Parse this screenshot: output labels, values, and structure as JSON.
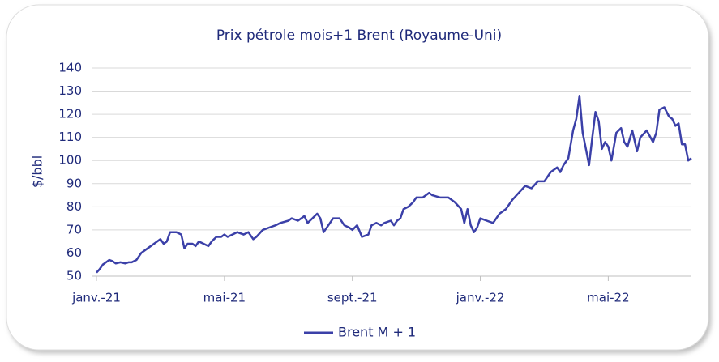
{
  "chart_data": {
    "type": "line",
    "title": "Prix pétrole mois+1 Brent (Royaume-Uni)",
    "y_label": "$/bbl",
    "x": [
      0,
      0.1,
      0.2,
      0.3,
      0.4,
      0.5,
      0.6,
      0.75,
      0.9,
      1.0,
      1.1,
      1.25,
      1.4,
      1.6,
      1.8,
      2.0,
      2.1,
      2.2,
      2.3,
      2.5,
      2.65,
      2.75,
      2.85,
      3.0,
      3.1,
      3.2,
      3.35,
      3.5,
      3.6,
      3.75,
      3.9,
      4.0,
      4.1,
      4.25,
      4.4,
      4.6,
      4.75,
      4.9,
      5.0,
      5.2,
      5.4,
      5.6,
      5.75,
      6.0,
      6.1,
      6.3,
      6.5,
      6.6,
      6.75,
      6.9,
      7.0,
      7.1,
      7.25,
      7.4,
      7.6,
      7.75,
      7.9,
      8.0,
      8.15,
      8.3,
      8.5,
      8.6,
      8.75,
      8.9,
      9.0,
      9.2,
      9.3,
      9.4,
      9.5,
      9.6,
      9.75,
      9.9,
      10.0,
      10.2,
      10.4,
      10.5,
      10.75,
      11.0,
      11.2,
      11.4,
      11.5,
      11.6,
      11.7,
      11.8,
      11.9,
      12.0,
      12.2,
      12.4,
      12.6,
      12.8,
      13.0,
      13.2,
      13.4,
      13.6,
      13.8,
      14.0,
      14.2,
      14.4,
      14.5,
      14.6,
      14.75,
      14.9,
      15.0,
      15.1,
      15.2,
      15.3,
      15.4,
      15.5,
      15.6,
      15.7,
      15.8,
      15.9,
      16.0,
      16.1,
      16.25,
      16.4,
      16.5,
      16.6,
      16.75,
      16.9,
      17.0,
      17.2,
      17.4,
      17.5,
      17.6,
      17.75,
      17.9,
      18.0,
      18.1,
      18.2,
      18.3,
      18.4,
      18.5,
      18.6
    ],
    "series": [
      {
        "name": "Brent M + 1",
        "color": "#3b40a8",
        "values": [
          51.5,
          53,
          55,
          56,
          57,
          56.5,
          55.5,
          56,
          55.5,
          56,
          56,
          57,
          60,
          62,
          64,
          66,
          64,
          65,
          69,
          69,
          68,
          62,
          64,
          64,
          63,
          65,
          64,
          63,
          65,
          67,
          67,
          68,
          67,
          68,
          69,
          68,
          69,
          66,
          67,
          70,
          71,
          72,
          73,
          74,
          75,
          74,
          76,
          73,
          75,
          77,
          75,
          69,
          72,
          75,
          75,
          72,
          71,
          70,
          72,
          67,
          68,
          72,
          73,
          72,
          73,
          74,
          72,
          74,
          75,
          79,
          80,
          82,
          84,
          84,
          86,
          85,
          84,
          84,
          82,
          79,
          73,
          79,
          72,
          69,
          71,
          75,
          74,
          73,
          77,
          79,
          83,
          86,
          89,
          88,
          91,
          91,
          95,
          97,
          95,
          98,
          101,
          113,
          118,
          128,
          112,
          105,
          98,
          110,
          121,
          117,
          105,
          108,
          106,
          100,
          112,
          114,
          108,
          106,
          113,
          104,
          110,
          113,
          108,
          112,
          122,
          123,
          119,
          118,
          115,
          116,
          107,
          107,
          100,
          101
        ]
      }
    ],
    "xlim": [
      0,
      18.6
    ],
    "xticks": [
      {
        "value": 0,
        "label": "janv.-21"
      },
      {
        "value": 4,
        "label": "mai-21"
      },
      {
        "value": 8,
        "label": "sept.-21"
      },
      {
        "value": 12,
        "label": "janv.-22"
      },
      {
        "value": 16,
        "label": "mai-22"
      }
    ],
    "ylim": [
      50,
      140
    ],
    "yticks": [
      50,
      60,
      70,
      80,
      90,
      100,
      110,
      120,
      130,
      140
    ],
    "grid": true,
    "legend": "bottom"
  }
}
